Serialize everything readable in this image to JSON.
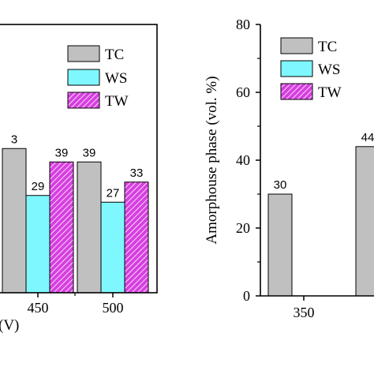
{
  "colors": {
    "TC": "#c0c0c0",
    "WS": "#7ff7ff",
    "TW": "#d63fe0",
    "axis": "#000000"
  },
  "chart_data": [
    {
      "type": "bar",
      "position": "left",
      "categories": [
        "450",
        "500"
      ],
      "series": [
        {
          "name": "TC",
          "values": [
            null,
            39
          ],
          "labels": [
            "3",
            "39"
          ]
        },
        {
          "name": "WS",
          "values": [
            29,
            27
          ],
          "labels": [
            "29",
            "27"
          ]
        },
        {
          "name": "TW",
          "values": [
            39,
            33
          ],
          "labels": [
            "39",
            "33"
          ]
        }
      ],
      "partial_values": {
        "TC_450_visible_height": 43
      },
      "xlabel": "(V)",
      "ylabel": "",
      "ylim": [
        0,
        80
      ],
      "legend": {
        "placement": "top-right",
        "entries": [
          "TC",
          "WS",
          "TW"
        ]
      }
    },
    {
      "type": "bar",
      "position": "right",
      "categories": [
        "350",
        ""
      ],
      "series": [
        {
          "name": "TC",
          "values": [
            30,
            44
          ],
          "labels": [
            "30",
            "44"
          ]
        }
      ],
      "xlabel": "",
      "ylabel": "Amorphouse phase (vol. %)",
      "ylim": [
        0,
        80
      ],
      "yticks": [
        "0",
        "20",
        "40",
        "60",
        "80"
      ],
      "legend": {
        "placement": "top-right",
        "entries": [
          "TC",
          "WS",
          "TW"
        ]
      }
    }
  ]
}
